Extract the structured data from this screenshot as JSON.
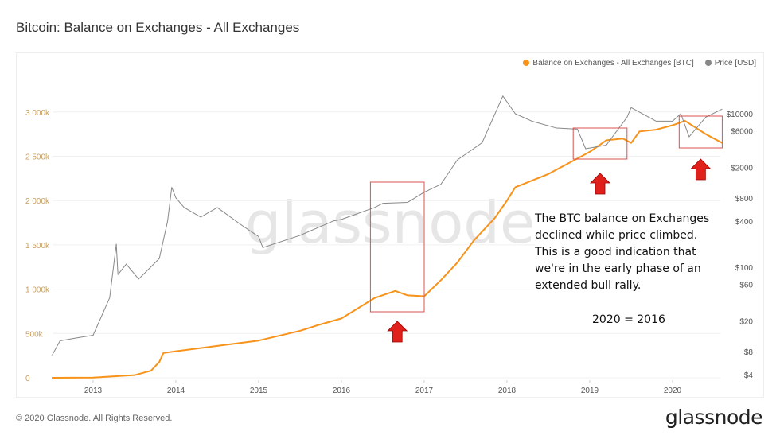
{
  "header": {
    "title": "Bitcoin: Balance on Exchanges - All Exchanges"
  },
  "footer": {
    "copyright": "© 2020 Glassnode. All Rights Reserved.",
    "logo": "glassnode",
    "watermark": "glassnode"
  },
  "annotation": {
    "text": "The BTC balance on Exchanges declined while price climbed. This is a good indication that we're in the early phase of an extended bull rally.",
    "equation": "2020 = 2016"
  },
  "chart_data": {
    "type": "line",
    "title": "Bitcoin: Balance on Exchanges - All Exchanges",
    "legend_position": "top-right",
    "grid": true,
    "x_ticks": [
      "2013",
      "2014",
      "2015",
      "2016",
      "2017",
      "2018",
      "2019",
      "2020"
    ],
    "xlim": [
      2012.5,
      2020.62
    ],
    "y_left": {
      "ticks": [
        "0",
        "500k",
        "1 000k",
        "1 500k",
        "2 000k",
        "2 500k",
        "3 000k"
      ],
      "tick_values": [
        0,
        500,
        1000,
        1500,
        2000,
        2500,
        3000
      ],
      "unit": "thousand BTC",
      "ylim": [
        0,
        3000
      ]
    },
    "y_right": {
      "scale": "log",
      "ticks": [
        "$4",
        "$8",
        "$20",
        "$60",
        "$100",
        "$400",
        "$800",
        "$2000",
        "$6000",
        "$10000"
      ],
      "tick_values": [
        4,
        8,
        20,
        60,
        100,
        400,
        800,
        2000,
        6000,
        10000
      ]
    },
    "series": [
      {
        "name": "Balance on Exchanges - All Exchanges [BTC]",
        "axis": "left",
        "color": "#f7931a",
        "x": [
          2012.5,
          2013.0,
          2013.5,
          2013.7,
          2013.8,
          2013.85,
          2014.0,
          2014.5,
          2015.0,
          2015.5,
          2015.7,
          2016.0,
          2016.4,
          2016.65,
          2016.8,
          2017.0,
          2017.2,
          2017.4,
          2017.6,
          2017.85,
          2018.0,
          2018.1,
          2018.5,
          2018.8,
          2019.0,
          2019.2,
          2019.4,
          2019.5,
          2019.6,
          2019.8,
          2020.0,
          2020.15,
          2020.4,
          2020.6
        ],
        "y": [
          0,
          2,
          30,
          80,
          180,
          280,
          300,
          360,
          420,
          530,
          590,
          670,
          900,
          980,
          930,
          920,
          1100,
          1300,
          1550,
          1800,
          2000,
          2150,
          2300,
          2450,
          2550,
          2680,
          2700,
          2650,
          2780,
          2800,
          2850,
          2900,
          2750,
          2650
        ]
      },
      {
        "name": "Price [USD]",
        "axis": "right",
        "color": "#888888",
        "x": [
          2012.5,
          2012.6,
          2012.8,
          2013.0,
          2013.2,
          2013.28,
          2013.3,
          2013.4,
          2013.55,
          2013.8,
          2013.9,
          2013.95,
          2014.0,
          2014.1,
          2014.3,
          2014.5,
          2014.8,
          2015.0,
          2015.05,
          2015.5,
          2015.9,
          2016.0,
          2016.4,
          2016.5,
          2016.8,
          2017.0,
          2017.2,
          2017.4,
          2017.7,
          2017.95,
          2018.1,
          2018.3,
          2018.6,
          2018.85,
          2018.95,
          2019.2,
          2019.45,
          2019.5,
          2019.8,
          2020.0,
          2020.1,
          2020.2,
          2020.4,
          2020.6
        ],
        "y": [
          7,
          11,
          12,
          13,
          40,
          200,
          80,
          110,
          70,
          130,
          400,
          1100,
          800,
          600,
          450,
          600,
          350,
          250,
          180,
          260,
          400,
          420,
          600,
          680,
          700,
          950,
          1200,
          2500,
          4200,
          17000,
          10000,
          8000,
          6500,
          6300,
          3500,
          3900,
          9000,
          12000,
          8000,
          8000,
          10000,
          5000,
          9000,
          11500
        ]
      }
    ],
    "highlight_boxes": [
      {
        "from": 2016.35,
        "to": 2017.0
      },
      {
        "from": 2018.8,
        "to": 2019.45
      },
      {
        "from": 2020.08,
        "to": 2020.6
      }
    ],
    "arrow_color": "#e0201b",
    "box_color": "#d9534f"
  }
}
